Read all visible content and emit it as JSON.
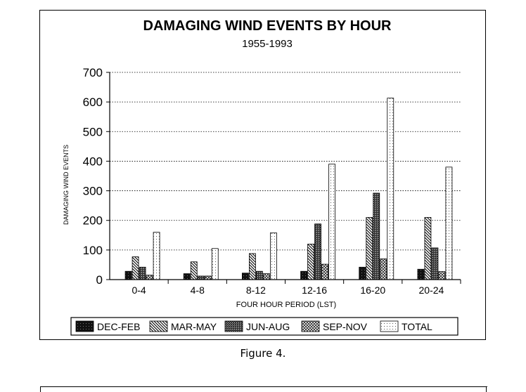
{
  "figure_caption": "Figure 4.",
  "chart_data": {
    "type": "bar",
    "title": "DAMAGING WIND EVENTS BY HOUR",
    "subtitle": "1955-1993",
    "xlabel": "FOUR HOUR PERIOD (LST)",
    "ylabel": "DAMAGING WIND EVENTS",
    "ylim": [
      0,
      700
    ],
    "yticks": [
      0,
      100,
      200,
      300,
      400,
      500,
      600,
      700
    ],
    "grid": true,
    "legend_position": "bottom",
    "categories": [
      "0-4",
      "4-8",
      "8-12",
      "12-16",
      "16-20",
      "20-24"
    ],
    "series": [
      {
        "name": "DEC-FEB",
        "pattern": "solid-dark",
        "values": [
          28,
          20,
          22,
          28,
          42,
          35
        ]
      },
      {
        "name": "MAR-MAY",
        "pattern": "diagonal",
        "values": [
          77,
          60,
          88,
          120,
          210,
          210
        ]
      },
      {
        "name": "JUN-AUG",
        "pattern": "dense",
        "values": [
          42,
          12,
          28,
          188,
          292,
          107
        ]
      },
      {
        "name": "SEP-NOV",
        "pattern": "crosshatch",
        "values": [
          15,
          12,
          20,
          52,
          70,
          27
        ]
      },
      {
        "name": "TOTAL",
        "pattern": "light-dots",
        "values": [
          160,
          105,
          158,
          390,
          613,
          380
        ]
      }
    ]
  }
}
